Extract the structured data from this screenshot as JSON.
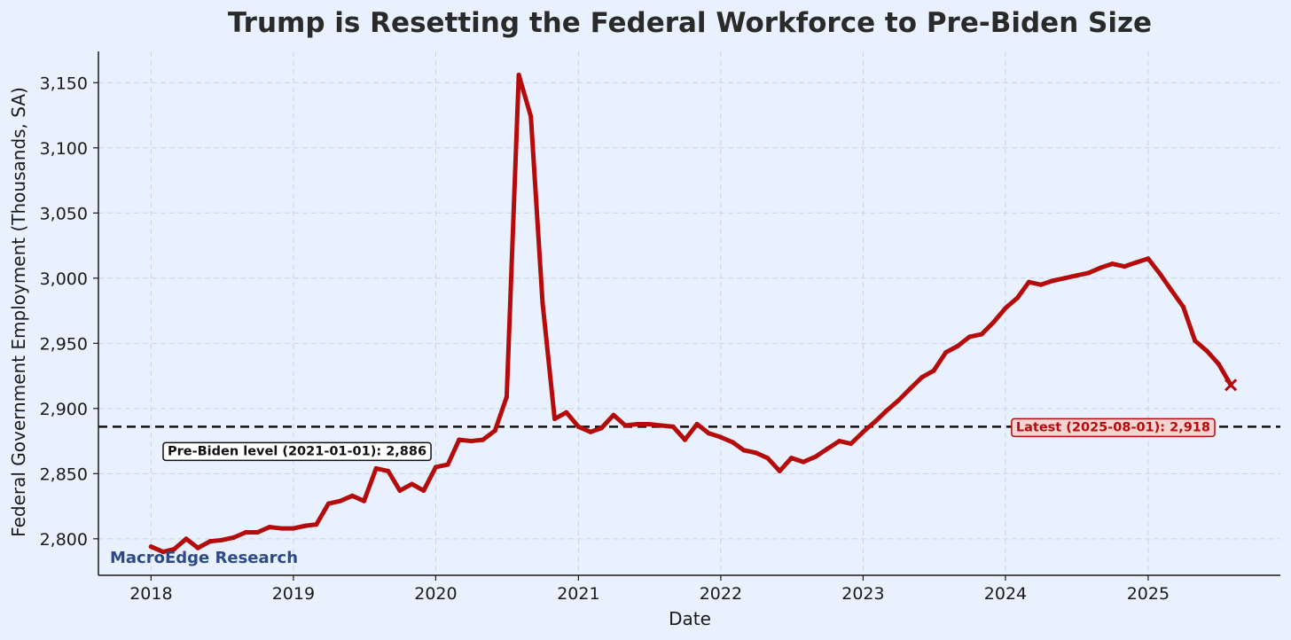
{
  "chart_data": {
    "type": "line",
    "title": "Trump is Resetting the Federal Workforce to Pre-Biden Size",
    "xlabel": "Date",
    "ylabel": "Federal Government Employment (Thousands, SA)",
    "x_ticks": [
      "2018",
      "2019",
      "2020",
      "2021",
      "2022",
      "2023",
      "2024",
      "2025"
    ],
    "y_ticks": [
      "2,800",
      "2,850",
      "2,900",
      "2,950",
      "3,000",
      "3,050",
      "3,100",
      "3,150"
    ],
    "y_tick_values": [
      2800,
      2850,
      2900,
      2950,
      3000,
      3050,
      3100,
      3150
    ],
    "xlim": [
      "2017-08-19",
      "2025-12-06"
    ],
    "ylim": [
      2772,
      3174
    ],
    "grid": true,
    "series": [
      {
        "color": "#b50b0b",
        "x": [
          "2018-01-01",
          "2018-02-01",
          "2018-03-01",
          "2018-04-01",
          "2018-05-01",
          "2018-06-01",
          "2018-07-01",
          "2018-08-01",
          "2018-09-01",
          "2018-10-01",
          "2018-11-01",
          "2018-12-01",
          "2019-01-01",
          "2019-02-01",
          "2019-03-01",
          "2019-04-01",
          "2019-05-01",
          "2019-06-01",
          "2019-07-01",
          "2019-08-01",
          "2019-09-01",
          "2019-10-01",
          "2019-11-01",
          "2019-12-01",
          "2020-01-01",
          "2020-02-01",
          "2020-03-01",
          "2020-04-01",
          "2020-05-01",
          "2020-06-01",
          "2020-07-01",
          "2020-08-01",
          "2020-09-01",
          "2020-10-01",
          "2020-11-01",
          "2020-12-01",
          "2021-01-01",
          "2021-02-01",
          "2021-03-01",
          "2021-04-01",
          "2021-05-01",
          "2021-06-01",
          "2021-07-01",
          "2021-08-01",
          "2021-09-01",
          "2021-10-01",
          "2021-11-01",
          "2021-12-01",
          "2022-01-01",
          "2022-02-01",
          "2022-03-01",
          "2022-04-01",
          "2022-05-01",
          "2022-06-01",
          "2022-07-01",
          "2022-08-01",
          "2022-09-01",
          "2022-10-01",
          "2022-11-01",
          "2022-12-01",
          "2023-01-01",
          "2023-02-01",
          "2023-03-01",
          "2023-04-01",
          "2023-05-01",
          "2023-06-01",
          "2023-07-01",
          "2023-08-01",
          "2023-09-01",
          "2023-10-01",
          "2023-11-01",
          "2023-12-01",
          "2024-01-01",
          "2024-02-01",
          "2024-03-01",
          "2024-04-01",
          "2024-05-01",
          "2024-06-01",
          "2024-07-01",
          "2024-08-01",
          "2024-09-01",
          "2024-10-01",
          "2024-11-01",
          "2024-12-01",
          "2025-01-01",
          "2025-02-01",
          "2025-03-01",
          "2025-04-01",
          "2025-05-01",
          "2025-06-01",
          "2025-07-01",
          "2025-08-01"
        ],
        "values": [
          2794,
          2790,
          2792,
          2800,
          2793,
          2798,
          2799,
          2801,
          2805,
          2805,
          2809,
          2808,
          2808,
          2810,
          2811,
          2827,
          2829,
          2833,
          2829,
          2854,
          2852,
          2837,
          2842,
          2837,
          2855,
          2857,
          2876,
          2875,
          2876,
          2883,
          2909,
          3156,
          3124,
          2981,
          2892,
          2897,
          2886,
          2882,
          2885,
          2895,
          2887,
          2888,
          2888,
          2887,
          2886,
          2876,
          2888,
          2881,
          2878,
          2874,
          2868,
          2866,
          2862,
          2852,
          2862,
          2859,
          2863,
          2869,
          2875,
          2873,
          2882,
          2890,
          2898,
          2906,
          2915,
          2924,
          2929,
          2943,
          2948,
          2955,
          2957,
          2966,
          2977,
          2985,
          2997,
          2995,
          2998,
          3000,
          3002,
          3004,
          3008,
          3011,
          3009,
          3012,
          3015,
          3003,
          2991,
          2978,
          2952,
          2944,
          2934,
          2918
        ]
      }
    ],
    "reference_line": {
      "y": 2886,
      "label": "Pre-Biden level (2021-01-01): 2,886"
    },
    "latest_point": {
      "x": "2025-08-01",
      "y": 2918,
      "label": "Latest (2025-08-01): 2,918"
    },
    "watermark": "MacroEdge Research",
    "colors": {
      "background": "#e8f1fd",
      "line": "#b50b0b",
      "reference": "#111111",
      "watermark": "#2b4a86",
      "latest_box_fill": "#f7d3d3",
      "latest_box_stroke": "#b50b0b"
    }
  }
}
